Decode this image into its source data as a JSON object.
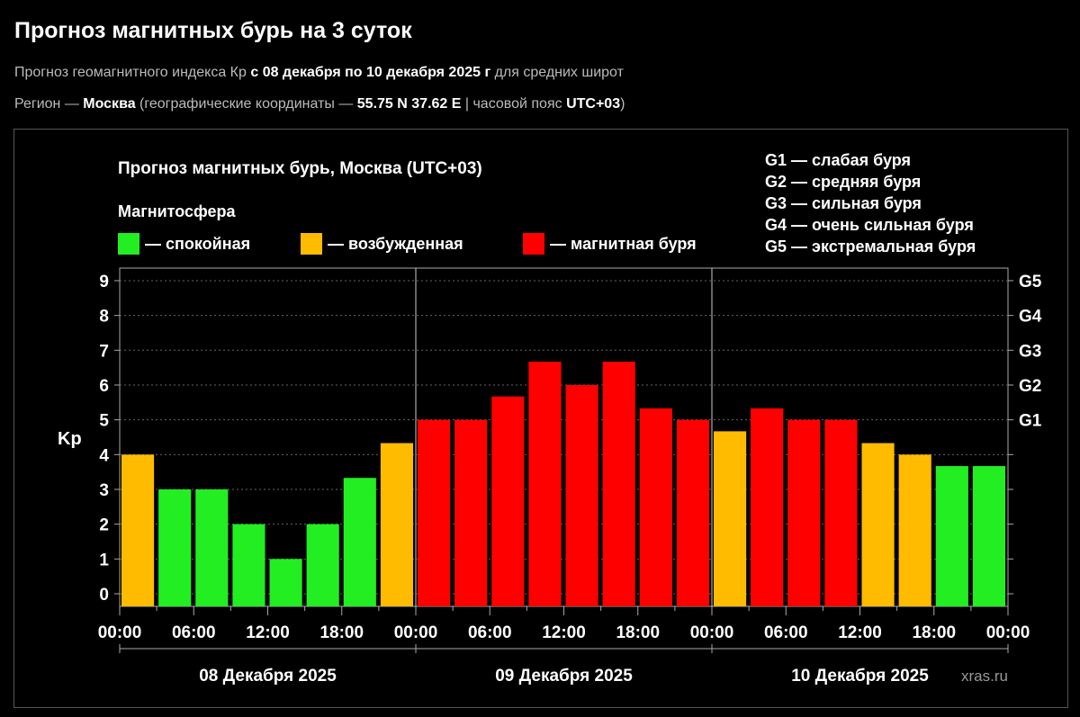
{
  "page": {
    "title": "Прогноз магнитных бурь на 3 суток",
    "line1": {
      "a": "Прогноз геомагнитного индекса Кр ",
      "b": "с 08 декабря по 10 декабря 2025 г",
      "c": " для средних широт"
    },
    "line2": {
      "a": "Регион — ",
      "b": "Москва",
      "c": " (географические координаты — ",
      "d": "55.75 N 37.62 E",
      "e": " | часовой пояс ",
      "f": "UTC+03",
      "g": ")"
    }
  },
  "chart_data": {
    "type": "bar",
    "title": "Прогноз магнитных бурь, Москва (UTC+03)",
    "legend_title": "Магнитосфера",
    "legend": [
      {
        "label": "— спокойная",
        "color": "#22ee22"
      },
      {
        "label": "— возбужденная",
        "color": "#ffbb00"
      },
      {
        "label": "— магнитная буря",
        "color": "#ff0000"
      }
    ],
    "storm_scale": [
      "G1 — слабая буря",
      "G2 — средняя буря",
      "G3 — сильная буря",
      "G4 — очень сильная буря",
      "G5 — экстремальная буря"
    ],
    "ylabel": "Kp",
    "ylim": [
      0,
      9
    ],
    "yticks": [
      0,
      1,
      2,
      3,
      4,
      5,
      6,
      7,
      8,
      9
    ],
    "right_ticks": [
      {
        "v": 5,
        "label": "G1"
      },
      {
        "v": 6,
        "label": "G2"
      },
      {
        "v": 7,
        "label": "G3"
      },
      {
        "v": 8,
        "label": "G4"
      },
      {
        "v": 9,
        "label": "G5"
      }
    ],
    "xtick_labels": [
      "00:00",
      "06:00",
      "12:00",
      "18:00",
      "00:00",
      "06:00",
      "12:00",
      "18:00",
      "00:00",
      "06:00",
      "12:00",
      "18:00",
      "00:00"
    ],
    "days": [
      "08 Декабря 2025",
      "09 Декабря 2025",
      "10 Декабря 2025"
    ],
    "interval_hours": 3,
    "values": [
      4,
      3,
      3,
      2,
      1,
      2,
      3.33,
      4.33,
      5,
      5,
      5.67,
      6.67,
      6,
      6.67,
      5.33,
      5,
      4.67,
      5.33,
      5,
      5,
      4.33,
      4,
      3.67,
      3.67
    ],
    "colors": {
      "quiet": "#22ee22",
      "active": "#ffbb00",
      "storm": "#ff0000"
    },
    "grid": true,
    "watermark": "xras.ru"
  }
}
